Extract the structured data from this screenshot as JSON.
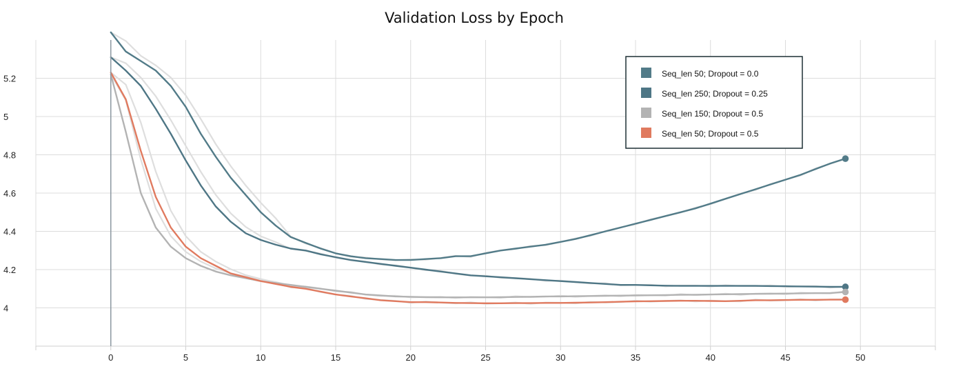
{
  "chart_data": {
    "type": "line",
    "title": "Validation Loss by Epoch",
    "xlabel": "",
    "ylabel": "",
    "xlim": [
      -5,
      55
    ],
    "ylim": [
      3.8,
      5.4
    ],
    "x_ticks": [
      0,
      5,
      10,
      15,
      20,
      25,
      30,
      35,
      40,
      45,
      50
    ],
    "y_ticks": [
      4,
      4.2,
      4.4,
      4.6,
      4.8,
      5,
      5.2
    ],
    "grid": true,
    "legend_position": "top-right",
    "series": [
      {
        "name": "Seq_len 50; Dropout = 0.0",
        "color": "#527b88",
        "end_marker": true,
        "values": [
          5.44,
          5.34,
          5.29,
          5.24,
          5.16,
          5.05,
          4.91,
          4.79,
          4.68,
          4.59,
          4.5,
          4.43,
          4.37,
          4.34,
          4.31,
          4.285,
          4.27,
          4.26,
          4.255,
          4.25,
          4.25,
          4.255,
          4.26,
          4.27,
          4.27,
          4.285,
          4.3,
          4.31,
          4.32,
          4.33,
          4.345,
          4.36,
          4.38,
          4.4,
          4.42,
          4.44,
          4.46,
          4.48,
          4.5,
          4.52,
          4.545,
          4.57,
          4.595,
          4.62,
          4.645,
          4.67,
          4.695,
          4.725,
          4.755,
          4.78
        ]
      },
      {
        "name": "Seq_len 250; Dropout = 0.25",
        "color": "#4e7685",
        "end_marker": true,
        "values": [
          5.31,
          5.24,
          5.16,
          5.04,
          4.91,
          4.77,
          4.64,
          4.53,
          4.45,
          4.39,
          4.355,
          4.33,
          4.31,
          4.3,
          4.28,
          4.265,
          4.25,
          4.24,
          4.23,
          4.22,
          4.21,
          4.2,
          4.19,
          4.18,
          4.17,
          4.165,
          4.16,
          4.155,
          4.15,
          4.145,
          4.14,
          4.135,
          4.13,
          4.125,
          4.12,
          4.12,
          4.118,
          4.116,
          4.115,
          4.115,
          4.115,
          4.115,
          4.115,
          4.115,
          4.114,
          4.113,
          4.112,
          4.111,
          4.11,
          4.11
        ]
      },
      {
        "name": "Seq_len 150; Dropout = 0.5",
        "color": "#b3b3b3",
        "end_marker": true,
        "values": [
          5.22,
          4.92,
          4.6,
          4.42,
          4.32,
          4.26,
          4.22,
          4.19,
          4.17,
          4.155,
          4.14,
          4.13,
          4.12,
          4.11,
          4.1,
          4.09,
          4.08,
          4.07,
          4.065,
          4.06,
          4.058,
          4.056,
          4.055,
          4.055,
          4.055,
          4.055,
          4.056,
          4.057,
          4.058,
          4.06,
          4.06,
          4.061,
          4.062,
          4.063,
          4.064,
          4.065,
          4.066,
          4.067,
          4.068,
          4.069,
          4.07,
          4.071,
          4.072,
          4.073,
          4.074,
          4.075,
          4.076,
          4.077,
          4.078,
          4.083
        ]
      },
      {
        "name": "Seq_len 50; Dropout = 0.5",
        "color": "#e07a5f",
        "end_marker": true,
        "values": [
          5.23,
          5.09,
          4.82,
          4.58,
          4.42,
          4.32,
          4.26,
          4.22,
          4.18,
          4.16,
          4.14,
          4.125,
          4.11,
          4.1,
          4.085,
          4.07,
          4.06,
          4.05,
          4.04,
          4.035,
          4.03,
          4.03,
          4.028,
          4.026,
          4.025,
          4.024,
          4.024,
          4.025,
          4.025,
          4.026,
          4.026,
          4.027,
          4.028,
          4.03,
          4.032,
          4.034,
          4.035,
          4.036,
          4.037,
          4.037,
          4.036,
          4.035,
          4.037,
          4.04,
          4.04,
          4.041,
          4.042,
          4.042,
          4.043,
          4.043
        ]
      }
    ]
  }
}
